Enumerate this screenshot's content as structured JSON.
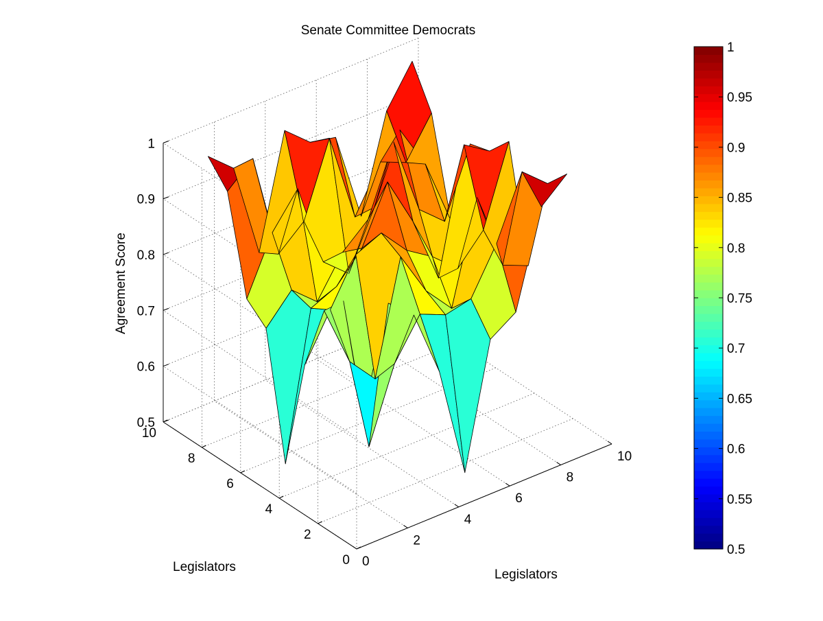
{
  "chart_data": {
    "type": "surface",
    "title": "Senate Committee Democrats",
    "xlabel": "Legislators",
    "ylabel": "Legislators",
    "zlabel": "Agreement Score",
    "xlim": [
      0,
      10
    ],
    "ylim": [
      0,
      10
    ],
    "zlim": [
      0.5,
      1
    ],
    "x_ticks": [
      0,
      2,
      4,
      6,
      8,
      10
    ],
    "y_ticks": [
      0,
      2,
      4,
      6,
      8,
      10
    ],
    "z_ticks": [
      0.5,
      0.6,
      0.7,
      0.8,
      0.9,
      1
    ],
    "z_tick_labels": [
      "0.5",
      "0.6",
      "0.7",
      "0.8",
      "0.9",
      "1"
    ],
    "colorbar": {
      "colormap": "jet",
      "range": [
        0.5,
        1
      ],
      "ticks": [
        "0.5",
        "0.55",
        "0.6",
        "0.65",
        "0.7",
        "0.75",
        "0.8",
        "0.85",
        "0.9",
        "0.95",
        "1"
      ]
    },
    "grid": true,
    "x": [
      1,
      2,
      3,
      4,
      5,
      6,
      7,
      8,
      9
    ],
    "y": [
      1,
      2,
      3,
      4,
      5,
      6,
      7,
      8,
      9
    ],
    "z": [
      [
        0.7,
        0.88,
        0.84,
        0.72,
        0.52,
        0.74,
        0.77,
        0.94,
        0.98
      ],
      [
        0.88,
        0.6,
        0.73,
        0.8,
        0.78,
        0.79,
        0.87,
        0.98,
        0.94
      ],
      [
        0.84,
        0.73,
        0.68,
        0.88,
        0.8,
        0.75,
        0.93,
        0.79,
        0.77
      ],
      [
        0.72,
        0.8,
        0.88,
        0.9,
        0.85,
        0.82,
        0.78,
        0.83,
        0.97
      ],
      [
        0.52,
        0.78,
        0.8,
        0.85,
        0.95,
        0.86,
        0.74,
        0.96,
        0.93
      ],
      [
        0.74,
        0.79,
        0.75,
        0.82,
        0.86,
        0.98,
        0.84,
        0.8,
        0.92
      ],
      [
        0.77,
        0.87,
        0.93,
        0.78,
        0.74,
        0.84,
        0.96,
        0.88,
        0.76
      ],
      [
        0.94,
        0.98,
        0.79,
        0.83,
        0.96,
        0.8,
        0.88,
        0.86,
        0.93
      ],
      [
        0.98,
        0.94,
        0.77,
        0.97,
        0.93,
        0.92,
        0.76,
        0.93,
        1.0
      ]
    ]
  }
}
